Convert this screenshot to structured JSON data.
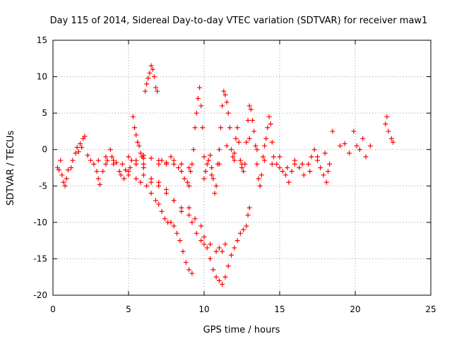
{
  "chart_data": {
    "type": "scatter",
    "title": "Day 115 of 2014, Sidereal Day-to-day VTEC variation (SDTVAR) for receiver maw1",
    "xlabel": "GPS time / hours",
    "ylabel": "SDTVAR / TECUs",
    "xlim": [
      0,
      25
    ],
    "ylim": [
      -20,
      15
    ],
    "xticks": [
      0,
      5,
      10,
      15,
      20,
      25
    ],
    "yticks": [
      -20,
      -15,
      -10,
      -5,
      0,
      5,
      10,
      15
    ],
    "grid": true,
    "marker": "+",
    "marker_color": "#ff0000",
    "series": [
      {
        "name": "maw1",
        "points": [
          [
            0.3,
            -2.5
          ],
          [
            0.4,
            -2.8
          ],
          [
            0.5,
            -1.5
          ],
          [
            0.6,
            -3.5
          ],
          [
            0.7,
            -4.5
          ],
          [
            0.8,
            -5.0
          ],
          [
            0.9,
            -4.0
          ],
          [
            1.0,
            -2.8
          ],
          [
            1.2,
            -2.5
          ],
          [
            1.3,
            -1.5
          ],
          [
            1.5,
            -0.5
          ],
          [
            1.6,
            0.3
          ],
          [
            1.7,
            -0.3
          ],
          [
            1.8,
            0.8
          ],
          [
            1.9,
            0.3
          ],
          [
            2.0,
            1.5
          ],
          [
            2.1,
            1.8
          ],
          [
            2.3,
            -0.8
          ],
          [
            2.5,
            -1.5
          ],
          [
            2.7,
            -2.0
          ],
          [
            2.9,
            -3.0
          ],
          [
            3.0,
            -4.0
          ],
          [
            3.1,
            -4.8
          ],
          [
            3.3,
            -3.0
          ],
          [
            3.5,
            -2.0
          ],
          [
            3.6,
            -1.5
          ],
          [
            3.8,
            0.0
          ],
          [
            3.9,
            -1.0
          ],
          [
            4.0,
            -2.0
          ],
          [
            4.2,
            -1.8
          ],
          [
            4.4,
            -3.0
          ],
          [
            4.6,
            -2.0
          ],
          [
            4.7,
            -4.0
          ],
          [
            4.8,
            -2.8
          ],
          [
            5.0,
            -3.0
          ],
          [
            5.1,
            -2.5
          ],
          [
            5.2,
            -1.5
          ],
          [
            5.3,
            4.5
          ],
          [
            5.4,
            3.0
          ],
          [
            5.5,
            2.0
          ],
          [
            5.6,
            1.0
          ],
          [
            5.7,
            0.5
          ],
          [
            5.8,
            -0.5
          ],
          [
            5.9,
            -1.0
          ],
          [
            6.0,
            -1.2
          ],
          [
            6.1,
            8.0
          ],
          [
            6.2,
            9.0
          ],
          [
            6.3,
            9.8
          ],
          [
            6.4,
            10.5
          ],
          [
            6.5,
            11.5
          ],
          [
            6.6,
            11.0
          ],
          [
            6.7,
            10.0
          ],
          [
            6.8,
            8.5
          ],
          [
            6.9,
            8.0
          ],
          [
            7.0,
            -2.0
          ],
          [
            7.2,
            -1.5
          ],
          [
            7.5,
            -2.0
          ],
          [
            7.8,
            -1.0
          ],
          [
            8.0,
            -2.0
          ],
          [
            8.3,
            -2.5
          ],
          [
            8.5,
            -3.0
          ],
          [
            8.7,
            -4.0
          ],
          [
            8.9,
            -4.5
          ],
          [
            9.0,
            -5.0
          ],
          [
            9.1,
            -3.0
          ],
          [
            9.2,
            -2.0
          ],
          [
            9.3,
            0.0
          ],
          [
            9.4,
            3.0
          ],
          [
            9.5,
            5.0
          ],
          [
            9.6,
            7.0
          ],
          [
            9.7,
            8.5
          ],
          [
            9.8,
            6.0
          ],
          [
            9.9,
            3.0
          ],
          [
            10.0,
            -1.0
          ],
          [
            10.1,
            -3.0
          ],
          [
            10.2,
            -2.0
          ],
          [
            10.3,
            -1.5
          ],
          [
            10.4,
            -0.8
          ],
          [
            10.5,
            -2.5
          ],
          [
            10.6,
            -4.0
          ],
          [
            10.7,
            -6.0
          ],
          [
            10.8,
            -5.0
          ],
          [
            10.9,
            -2.0
          ],
          [
            11.0,
            0.0
          ],
          [
            11.1,
            3.0
          ],
          [
            11.2,
            6.0
          ],
          [
            11.3,
            8.0
          ],
          [
            11.4,
            7.5
          ],
          [
            11.5,
            6.5
          ],
          [
            11.6,
            5.0
          ],
          [
            11.7,
            3.0
          ],
          [
            11.8,
            0.0
          ],
          [
            11.9,
            -1.0
          ],
          [
            12.0,
            -0.5
          ],
          [
            12.1,
            1.5
          ],
          [
            12.2,
            3.0
          ],
          [
            12.3,
            1.0
          ],
          [
            12.4,
            -1.5
          ],
          [
            12.5,
            -2.5
          ],
          [
            12.6,
            -3.0
          ],
          [
            12.7,
            -2.0
          ],
          [
            12.8,
            1.0
          ],
          [
            12.9,
            4.0
          ],
          [
            13.0,
            6.0
          ],
          [
            13.1,
            5.5
          ],
          [
            13.2,
            4.0
          ],
          [
            13.3,
            2.5
          ],
          [
            13.4,
            0.5
          ],
          [
            13.5,
            -2.0
          ],
          [
            13.6,
            -4.0
          ],
          [
            13.7,
            -5.0
          ],
          [
            13.8,
            -3.5
          ],
          [
            13.9,
            -1.0
          ],
          [
            14.0,
            0.5
          ],
          [
            14.1,
            1.5
          ],
          [
            14.2,
            3.0
          ],
          [
            14.3,
            4.5
          ],
          [
            14.4,
            3.5
          ],
          [
            14.5,
            1.0
          ],
          [
            14.6,
            -1.0
          ],
          [
            14.8,
            -2.0
          ],
          [
            15.0,
            -2.5
          ],
          [
            15.2,
            -3.0
          ],
          [
            15.4,
            -3.5
          ],
          [
            15.6,
            -4.5
          ],
          [
            15.8,
            -3.0
          ],
          [
            16.0,
            -2.0
          ],
          [
            16.3,
            -2.5
          ],
          [
            16.6,
            -3.5
          ],
          [
            16.9,
            -2.0
          ],
          [
            17.1,
            -1.0
          ],
          [
            17.3,
            0.0
          ],
          [
            17.5,
            -1.0
          ],
          [
            17.7,
            -2.5
          ],
          [
            17.9,
            -3.5
          ],
          [
            18.1,
            -4.5
          ],
          [
            18.3,
            -2.0
          ],
          [
            18.5,
            2.5
          ],
          [
            19.0,
            0.5
          ],
          [
            19.3,
            0.8
          ],
          [
            19.6,
            -0.5
          ],
          [
            19.9,
            2.5
          ],
          [
            20.1,
            0.5
          ],
          [
            20.3,
            0.0
          ],
          [
            20.5,
            1.5
          ],
          [
            20.7,
            -1.0
          ],
          [
            21.0,
            0.5
          ],
          [
            22.0,
            3.5
          ],
          [
            22.1,
            4.5
          ],
          [
            22.2,
            2.5
          ],
          [
            22.4,
            1.5
          ],
          [
            22.5,
            1.0
          ],
          [
            3.0,
            -1.5
          ],
          [
            3.5,
            -1.0
          ],
          [
            4.0,
            -1.5
          ],
          [
            4.5,
            -3.5
          ],
          [
            5.0,
            -3.5
          ],
          [
            5.5,
            -4.0
          ],
          [
            5.8,
            -4.5
          ],
          [
            6.0,
            -3.5
          ],
          [
            6.2,
            -5.0
          ],
          [
            6.5,
            -6.0
          ],
          [
            6.8,
            -7.0
          ],
          [
            7.0,
            -7.5
          ],
          [
            7.2,
            -8.5
          ],
          [
            7.4,
            -9.5
          ],
          [
            7.6,
            -10.0
          ],
          [
            7.8,
            -10.0
          ],
          [
            8.0,
            -10.5
          ],
          [
            8.2,
            -11.5
          ],
          [
            8.4,
            -12.5
          ],
          [
            8.6,
            -14.0
          ],
          [
            8.8,
            -15.5
          ],
          [
            9.0,
            -16.5
          ],
          [
            9.2,
            -17.0
          ],
          [
            5.5,
            -1.5
          ],
          [
            6.0,
            -2.5
          ],
          [
            6.5,
            -4.5
          ],
          [
            7.0,
            -5.0
          ],
          [
            7.5,
            -6.0
          ],
          [
            8.0,
            -7.0
          ],
          [
            8.5,
            -8.0
          ],
          [
            9.0,
            -9.0
          ],
          [
            9.2,
            -10.0
          ],
          [
            9.5,
            -11.5
          ],
          [
            9.8,
            -12.5
          ],
          [
            10.0,
            -13.0
          ],
          [
            10.2,
            -13.5
          ],
          [
            10.4,
            -15.0
          ],
          [
            10.6,
            -16.5
          ],
          [
            10.8,
            -17.5
          ],
          [
            11.0,
            -18.0
          ],
          [
            11.2,
            -18.5
          ],
          [
            11.4,
            -17.5
          ],
          [
            11.6,
            -16.0
          ],
          [
            11.8,
            -14.5
          ],
          [
            12.0,
            -13.5
          ],
          [
            12.2,
            -12.5
          ],
          [
            12.4,
            -11.5
          ],
          [
            12.6,
            -11.0
          ],
          [
            12.8,
            -10.5
          ],
          [
            12.9,
            -9.0
          ],
          [
            13.0,
            -8.0
          ],
          [
            5.0,
            -1.0
          ],
          [
            5.5,
            -2.0
          ],
          [
            6.0,
            -2.0
          ],
          [
            6.5,
            -4.0
          ],
          [
            7.0,
            -4.5
          ],
          [
            7.5,
            -5.5
          ],
          [
            8.0,
            -7.0
          ],
          [
            8.5,
            -8.5
          ],
          [
            9.0,
            -8.0
          ],
          [
            9.4,
            -9.5
          ],
          [
            9.8,
            -10.5
          ],
          [
            10.0,
            -12.0
          ],
          [
            10.4,
            -13.0
          ],
          [
            10.8,
            -14.0
          ],
          [
            11.0,
            -13.5
          ],
          [
            11.2,
            -14.0
          ],
          [
            11.4,
            -13.0
          ],
          [
            6.0,
            -0.8
          ],
          [
            6.5,
            -1.2
          ],
          [
            7.0,
            -1.5
          ],
          [
            7.5,
            -1.8
          ],
          [
            8.0,
            -1.5
          ],
          [
            8.5,
            -2.0
          ],
          [
            9.0,
            -2.5
          ],
          [
            10.0,
            -4.0
          ],
          [
            10.5,
            -3.5
          ],
          [
            11.0,
            -2.0
          ],
          [
            11.5,
            0.5
          ],
          [
            12.0,
            -1.5
          ],
          [
            12.5,
            -2.0
          ],
          [
            13.0,
            1.5
          ],
          [
            13.5,
            0.0
          ],
          [
            14.0,
            -1.5
          ],
          [
            14.5,
            -2.0
          ],
          [
            15.0,
            -1.0
          ],
          [
            15.5,
            -2.5
          ],
          [
            16.0,
            -1.5
          ],
          [
            16.5,
            -2.0
          ],
          [
            17.0,
            -3.0
          ],
          [
            17.5,
            -1.5
          ],
          [
            18.0,
            -0.5
          ],
          [
            18.2,
            -3.0
          ]
        ]
      }
    ]
  }
}
